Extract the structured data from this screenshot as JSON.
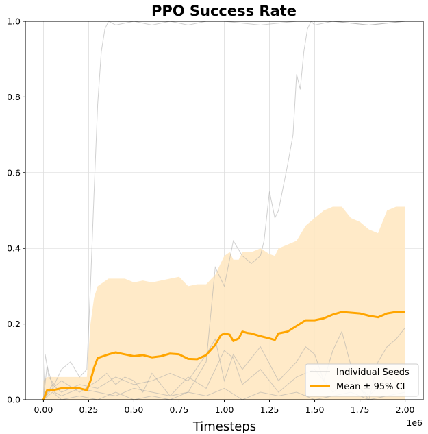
{
  "chart_data": {
    "type": "line",
    "title": "PPO Success Rate",
    "xlabel": "Timesteps",
    "ylabel": "",
    "x_offset_label": "1e6",
    "xlim": [
      -0.1,
      2.1
    ],
    "ylim": [
      0,
      1.0
    ],
    "x_ticks": [
      0.0,
      0.25,
      0.5,
      0.75,
      1.0,
      1.25,
      1.5,
      1.75,
      2.0
    ],
    "x_tick_labels": [
      "0.00",
      "0.25",
      "0.50",
      "0.75",
      "1.00",
      "1.25",
      "1.50",
      "1.75",
      "2.00"
    ],
    "y_ticks": [
      0.0,
      0.2,
      0.4,
      0.6,
      0.8,
      1.0
    ],
    "y_tick_labels": [
      "0.0",
      "0.2",
      "0.4",
      "0.6",
      "0.8",
      "1.0"
    ],
    "grid": true,
    "legend_position": "lower-right",
    "colors": {
      "mean": "#FFA500",
      "ci_fill": "#FFE8C2",
      "seeds": "#AAAAAA"
    },
    "series": [
      {
        "name": "Individual Seeds",
        "style": "thin-gray",
        "lines": [
          {
            "x": [
              0.0,
              0.01,
              0.03,
              0.06,
              0.1,
              0.15,
              0.2,
              0.24,
              0.26,
              0.28,
              0.3,
              0.32,
              0.34,
              0.36,
              0.4,
              0.5,
              0.6,
              0.7,
              0.8,
              0.9,
              1.0,
              1.2,
              1.4,
              1.6,
              1.8,
              2.0
            ],
            "y": [
              0.0,
              0.12,
              0.06,
              0.04,
              0.08,
              0.1,
              0.06,
              0.08,
              0.3,
              0.55,
              0.78,
              0.92,
              0.98,
              1.0,
              0.99,
              1.0,
              0.99,
              1.0,
              0.99,
              1.0,
              1.0,
              0.99,
              1.0,
              1.0,
              0.99,
              1.0
            ]
          },
          {
            "x": [
              0.0,
              0.05,
              0.1,
              0.2,
              0.3,
              0.4,
              0.5,
              0.6,
              0.7,
              0.8,
              0.9,
              0.95,
              1.0,
              1.05,
              1.1,
              1.15,
              1.2,
              1.22,
              1.25,
              1.28,
              1.3,
              1.35,
              1.38,
              1.4,
              1.42,
              1.44,
              1.46,
              1.48,
              1.5,
              1.6,
              1.8,
              2.0
            ],
            "y": [
              0.0,
              0.02,
              0.0,
              0.01,
              0.0,
              0.02,
              0.0,
              0.01,
              0.0,
              0.02,
              0.1,
              0.35,
              0.3,
              0.42,
              0.38,
              0.36,
              0.38,
              0.42,
              0.55,
              0.48,
              0.5,
              0.62,
              0.7,
              0.86,
              0.82,
              0.92,
              0.98,
              1.0,
              0.99,
              1.0,
              0.99,
              1.0
            ]
          },
          {
            "x": [
              0.0,
              0.05,
              0.1,
              0.2,
              0.3,
              0.4,
              0.5,
              0.6,
              0.7,
              0.8,
              0.9,
              0.95,
              1.0,
              1.05,
              1.1,
              1.2,
              1.3,
              1.4,
              1.45,
              1.5,
              1.55,
              1.6,
              1.65,
              1.7,
              1.75,
              1.8,
              1.85,
              1.9,
              1.95,
              2.0
            ],
            "y": [
              0.0,
              0.04,
              0.02,
              0.04,
              0.03,
              0.06,
              0.04,
              0.05,
              0.07,
              0.05,
              0.12,
              0.16,
              0.05,
              0.12,
              0.08,
              0.14,
              0.05,
              0.1,
              0.14,
              0.12,
              0.05,
              0.13,
              0.18,
              0.09,
              0.03,
              0.0,
              0.1,
              0.14,
              0.16,
              0.19
            ]
          },
          {
            "x": [
              0.0,
              0.05,
              0.1,
              0.2,
              0.3,
              0.35,
              0.4,
              0.45,
              0.5,
              0.55,
              0.6,
              0.65,
              0.7,
              0.8,
              0.9,
              1.0,
              1.05,
              1.1,
              1.2,
              1.3,
              1.4,
              1.5,
              1.6,
              1.7,
              1.8,
              1.9,
              2.0
            ],
            "y": [
              0.0,
              0.03,
              0.05,
              0.02,
              0.05,
              0.07,
              0.04,
              0.06,
              0.05,
              0.02,
              0.07,
              0.04,
              0.01,
              0.06,
              0.03,
              0.13,
              0.11,
              0.04,
              0.08,
              0.02,
              0.06,
              0.08,
              0.02,
              0.05,
              0.01,
              0.06,
              0.03
            ]
          },
          {
            "x": [
              0.0,
              0.02,
              0.06,
              0.1,
              0.2,
              0.3,
              0.4,
              0.5,
              0.6,
              0.7,
              0.8,
              0.9,
              1.0,
              1.1,
              1.2,
              1.3,
              1.4,
              1.5,
              1.6,
              1.7,
              1.8,
              1.9,
              2.0
            ],
            "y": [
              0.0,
              0.09,
              0.02,
              0.01,
              0.03,
              0.02,
              0.01,
              0.03,
              0.02,
              0.01,
              0.02,
              0.01,
              0.03,
              0.0,
              0.02,
              0.01,
              0.02,
              0.0,
              0.01,
              0.02,
              0.0,
              0.01,
              0.02
            ]
          }
        ]
      },
      {
        "name": "Mean ± 95% CI",
        "style": "mean-with-ci",
        "x": [
          0.0,
          0.02,
          0.05,
          0.1,
          0.15,
          0.2,
          0.24,
          0.26,
          0.28,
          0.3,
          0.33,
          0.36,
          0.4,
          0.45,
          0.5,
          0.55,
          0.6,
          0.65,
          0.7,
          0.75,
          0.8,
          0.85,
          0.9,
          0.95,
          0.98,
          1.0,
          1.03,
          1.05,
          1.08,
          1.1,
          1.13,
          1.15,
          1.2,
          1.25,
          1.28,
          1.3,
          1.35,
          1.4,
          1.45,
          1.5,
          1.55,
          1.6,
          1.65,
          1.7,
          1.75,
          1.8,
          1.85,
          1.9,
          1.95,
          2.0
        ],
        "mean": [
          0.0,
          0.025,
          0.025,
          0.03,
          0.03,
          0.03,
          0.025,
          0.05,
          0.085,
          0.11,
          0.115,
          0.12,
          0.125,
          0.12,
          0.115,
          0.118,
          0.112,
          0.115,
          0.122,
          0.12,
          0.108,
          0.107,
          0.118,
          0.145,
          0.17,
          0.175,
          0.172,
          0.155,
          0.162,
          0.18,
          0.176,
          0.175,
          0.168,
          0.162,
          0.158,
          0.175,
          0.18,
          0.195,
          0.21,
          0.21,
          0.215,
          0.225,
          0.232,
          0.23,
          0.228,
          0.222,
          0.218,
          0.228,
          0.232,
          0.232
        ],
        "ci_upper": [
          0.05,
          0.06,
          0.06,
          0.06,
          0.06,
          0.06,
          0.06,
          0.2,
          0.27,
          0.3,
          0.31,
          0.32,
          0.32,
          0.32,
          0.31,
          0.315,
          0.31,
          0.315,
          0.32,
          0.325,
          0.3,
          0.305,
          0.305,
          0.33,
          0.36,
          0.38,
          0.39,
          0.37,
          0.37,
          0.39,
          0.39,
          0.39,
          0.4,
          0.385,
          0.38,
          0.4,
          0.41,
          0.42,
          0.46,
          0.48,
          0.5,
          0.51,
          0.51,
          0.48,
          0.47,
          0.45,
          0.44,
          0.5,
          0.51,
          0.51
        ],
        "ci_lower": [
          0.0,
          0.0,
          0.0,
          0.0,
          0.0,
          0.0,
          0.0,
          0.0,
          0.0,
          0.0,
          0.0,
          0.0,
          0.0,
          0.0,
          0.0,
          0.0,
          0.0,
          0.0,
          0.0,
          0.0,
          0.0,
          0.0,
          0.0,
          0.0,
          0.0,
          0.0,
          0.0,
          0.0,
          0.0,
          0.0,
          0.0,
          0.0,
          0.0,
          0.0,
          0.0,
          0.0,
          0.0,
          0.0,
          0.0,
          0.0,
          0.0,
          0.0,
          0.0,
          0.0,
          0.0,
          0.0,
          0.0,
          0.0,
          0.0,
          0.0
        ]
      }
    ]
  }
}
